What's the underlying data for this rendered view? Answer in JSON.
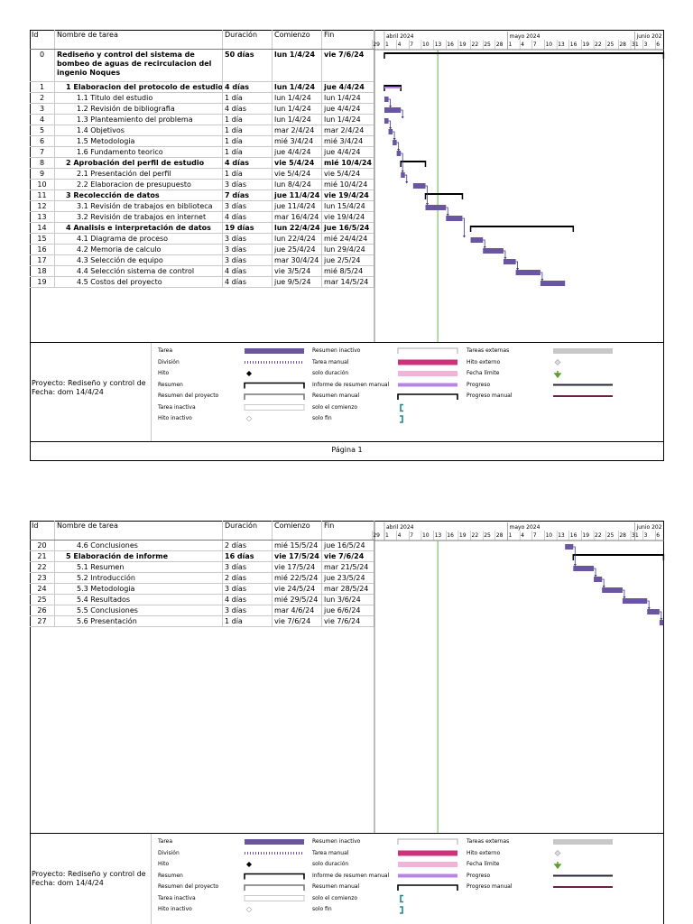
{
  "columns": {
    "id": "Id",
    "name": "Nombre de tarea",
    "duration": "Duración",
    "start": "Comienzo",
    "end": "Fin"
  },
  "timescale": {
    "months": [
      "abril 2024",
      "mayo 2024",
      "junio 202"
    ],
    "days": [
      "29",
      "1",
      "4",
      "7",
      "10",
      "13",
      "16",
      "19",
      "22",
      "25",
      "28",
      "1",
      "4",
      "7",
      "10",
      "13",
      "16",
      "19",
      "22",
      "25",
      "28",
      "31",
      "3",
      "6"
    ]
  },
  "page1": {
    "tasks": [
      {
        "id": "0",
        "name": "Rediseño y control del sistema de",
        "name2": "bombeo de aguas de recirculacion del",
        "name3": "ingenio Noques",
        "duration": "50 días",
        "start": "lun 1/4/24",
        "end": "vie 7/6/24",
        "level": 0,
        "bold": true,
        "tall": true,
        "kind": "project"
      },
      {
        "id": "1",
        "name": "1 Elaboracion del protocolo de estudio",
        "duration": "4 días",
        "start": "lun 1/4/24",
        "end": "jue 4/4/24",
        "level": 1,
        "bold": true,
        "kind": "summary"
      },
      {
        "id": "2",
        "name": "1.1 Titulo del estudio",
        "duration": "1 día",
        "start": "lun 1/4/24",
        "end": "lun 1/4/24",
        "level": 2,
        "bold": false,
        "kind": "task"
      },
      {
        "id": "3",
        "name": "1.2 Revisión de bibliografia",
        "duration": "4 días",
        "start": "lun 1/4/24",
        "end": "jue 4/4/24",
        "level": 2,
        "bold": false,
        "kind": "task"
      },
      {
        "id": "4",
        "name": "1.3 Planteamiento del problema",
        "duration": "1 día",
        "start": "lun 1/4/24",
        "end": "lun 1/4/24",
        "level": 2,
        "bold": false,
        "kind": "task"
      },
      {
        "id": "5",
        "name": "1.4 Objetivos",
        "duration": "1 día",
        "start": "mar 2/4/24",
        "end": "mar 2/4/24",
        "level": 2,
        "bold": false,
        "kind": "task"
      },
      {
        "id": "6",
        "name": "1.5 Metodologia",
        "duration": "1 día",
        "start": "mié 3/4/24",
        "end": "mié 3/4/24",
        "level": 2,
        "bold": false,
        "kind": "task"
      },
      {
        "id": "7",
        "name": "1.6 Fundamento teorico",
        "duration": "1 día",
        "start": "jue 4/4/24",
        "end": "jue 4/4/24",
        "level": 2,
        "bold": false,
        "kind": "task"
      },
      {
        "id": "8",
        "name": "2 Aprobación del perfil de estudio",
        "duration": "4 días",
        "start": "vie 5/4/24",
        "end": "mié 10/4/24",
        "level": 1,
        "bold": true,
        "kind": "summary"
      },
      {
        "id": "9",
        "name": "2.1 Presentación del perfil",
        "duration": "1 día",
        "start": "vie 5/4/24",
        "end": "vie 5/4/24",
        "level": 2,
        "bold": false,
        "kind": "task"
      },
      {
        "id": "10",
        "name": "2.2 Elaboracion de presupuesto",
        "duration": "3 días",
        "start": "lun 8/4/24",
        "end": "mié 10/4/24",
        "level": 2,
        "bold": false,
        "kind": "task"
      },
      {
        "id": "11",
        "name": "3 Recolección de datos",
        "duration": "7 días",
        "start": "jue 11/4/24",
        "end": "vie 19/4/24",
        "level": 1,
        "bold": true,
        "kind": "summary"
      },
      {
        "id": "12",
        "name": "3.1 Revisión de trabajos en biblioteca",
        "duration": "3 días",
        "start": "jue 11/4/24",
        "end": "lun 15/4/24",
        "level": 2,
        "bold": false,
        "kind": "task"
      },
      {
        "id": "13",
        "name": "3.2 Revisión de trabajos en internet",
        "duration": "4 días",
        "start": "mar 16/4/24",
        "end": "vie 19/4/24",
        "level": 2,
        "bold": false,
        "kind": "task"
      },
      {
        "id": "14",
        "name": "4 Analisis e interpretación de datos",
        "duration": "19 días",
        "start": "lun 22/4/24",
        "end": "jue 16/5/24",
        "level": 1,
        "bold": true,
        "kind": "summary"
      },
      {
        "id": "15",
        "name": "4.1 Diagrama de proceso",
        "duration": "3 días",
        "start": "lun 22/4/24",
        "end": "mié 24/4/24",
        "level": 2,
        "bold": false,
        "kind": "task"
      },
      {
        "id": "16",
        "name": "4.2 Memoria de calculo",
        "duration": "3 días",
        "start": "jue 25/4/24",
        "end": "lun 29/4/24",
        "level": 2,
        "bold": false,
        "kind": "task"
      },
      {
        "id": "17",
        "name": "4.3 Selección de equipo",
        "duration": "3 días",
        "start": "mar 30/4/24",
        "end": "jue 2/5/24",
        "level": 2,
        "bold": false,
        "kind": "task"
      },
      {
        "id": "18",
        "name": "4.4 Selección sistema de control",
        "duration": "4 días",
        "start": "vie 3/5/24",
        "end": "mié 8/5/24",
        "level": 2,
        "bold": false,
        "kind": "task"
      },
      {
        "id": "19",
        "name": "4.5 Costos del proyecto",
        "duration": "4 días",
        "start": "jue 9/5/24",
        "end": "mar 14/5/24",
        "level": 2,
        "bold": false,
        "kind": "task"
      }
    ]
  },
  "page2": {
    "tasks": [
      {
        "id": "20",
        "name": "4.6 Conclusiones",
        "duration": "2 días",
        "start": "mié 15/5/24",
        "end": "jue 16/5/24",
        "level": 2,
        "bold": false,
        "kind": "task"
      },
      {
        "id": "21",
        "name": "5 Elaboración de informe",
        "duration": "16 días",
        "start": "vie 17/5/24",
        "end": "vie 7/6/24",
        "level": 1,
        "bold": true,
        "kind": "summary"
      },
      {
        "id": "22",
        "name": "5.1 Resumen",
        "duration": "3 días",
        "start": "vie 17/5/24",
        "end": "mar 21/5/24",
        "level": 2,
        "bold": false,
        "kind": "task"
      },
      {
        "id": "23",
        "name": "5.2 Introducción",
        "duration": "2 días",
        "start": "mié 22/5/24",
        "end": "jue 23/5/24",
        "level": 2,
        "bold": false,
        "kind": "task"
      },
      {
        "id": "24",
        "name": "5.3 Metodologia",
        "duration": "3 días",
        "start": "vie 24/5/24",
        "end": "mar 28/5/24",
        "level": 2,
        "bold": false,
        "kind": "task"
      },
      {
        "id": "25",
        "name": "5.4 Resultados",
        "duration": "4 días",
        "start": "mié 29/5/24",
        "end": "lun 3/6/24",
        "level": 2,
        "bold": false,
        "kind": "task"
      },
      {
        "id": "26",
        "name": "5.5 Conclusiones",
        "duration": "3 días",
        "start": "mar 4/6/24",
        "end": "jue 6/6/24",
        "level": 2,
        "bold": false,
        "kind": "task"
      },
      {
        "id": "27",
        "name": "5.6 Presentación",
        "duration": "1 día",
        "start": "vie 7/6/24",
        "end": "vie 7/6/24",
        "level": 2,
        "bold": false,
        "kind": "task"
      }
    ]
  },
  "legend": {
    "project_line1": "Proyecto: Rediseño y control de",
    "project_line2": "Fecha: dom 14/4/24",
    "col1": [
      "Tarea",
      "División",
      "Hito",
      "Resumen",
      "Resumen del proyecto",
      "Tarea inactiva",
      "Hito inactivo"
    ],
    "col2": [
      "Resumen inactivo",
      "Tarea manual",
      "solo duración",
      "Informe de resumen manual",
      "Resumen manual",
      "solo el comienzo",
      "solo fin"
    ],
    "col3": [
      "Tareas externas",
      "Hito externo",
      "Fecha límite",
      "Progreso",
      "Progreso manual"
    ]
  },
  "footer": {
    "page": "Página 1"
  },
  "colors": {
    "task": "#6a55a3",
    "manual": "#d0307a",
    "duration_only": "#f0b4d8",
    "manual_summary_report": "#b784e8",
    "progress": "#262638",
    "manual_progress": "#6b1f4a",
    "external": "#c8c8c8",
    "deadline": "#5aa02c",
    "status_line": "#6ab04c"
  }
}
